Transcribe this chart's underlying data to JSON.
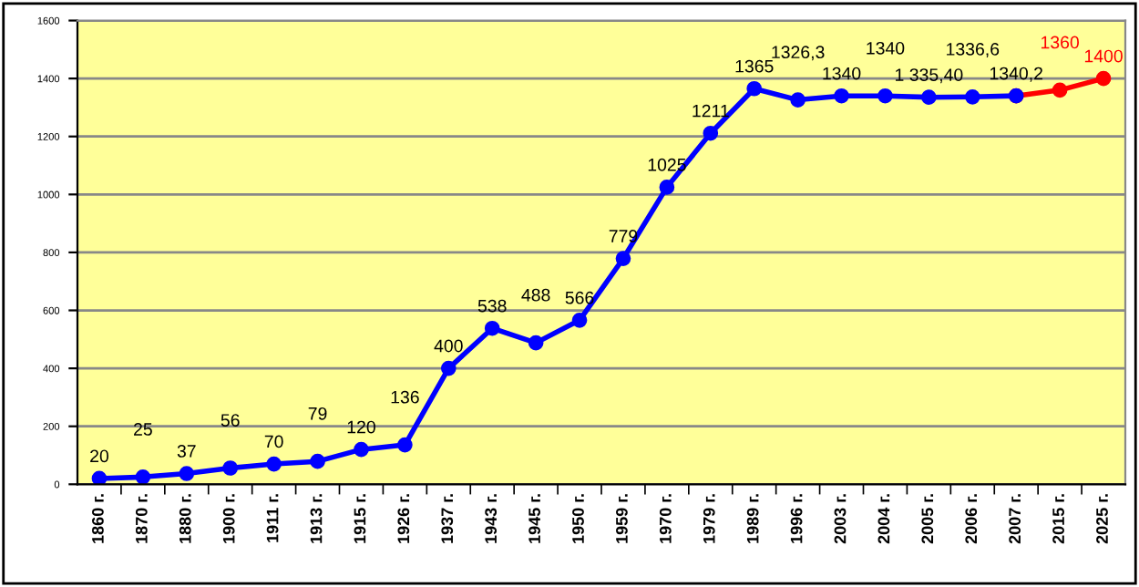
{
  "chart_data": {
    "type": "line",
    "categories": [
      "1860 г.",
      "1870 г.",
      "1880 г.",
      "1900 г.",
      "1911 г.",
      "1913 г.",
      "1915 г.",
      "1926 г.",
      "1937 г.",
      "1943 г.",
      "1945 г.",
      "1950 г.",
      "1959 г.",
      "1970 г.",
      "1979 г.",
      "1989 г.",
      "1996 г.",
      "2003 г.",
      "2004 г.",
      "2005 г.",
      "2006 г.",
      "2007 г.",
      "2015 г.",
      "2025 г."
    ],
    "series": [
      {
        "color": "#ff0000",
        "values": [
          null,
          null,
          null,
          null,
          null,
          null,
          null,
          null,
          null,
          null,
          null,
          null,
          null,
          null,
          null,
          null,
          null,
          null,
          null,
          null,
          null,
          1340.2,
          1360,
          1400
        ],
        "value_labels": [
          null,
          null,
          null,
          null,
          null,
          null,
          null,
          null,
          null,
          null,
          null,
          null,
          null,
          null,
          null,
          null,
          null,
          null,
          null,
          null,
          null,
          null,
          "1360",
          "1400"
        ]
      },
      {
        "color": "#0000ff",
        "values": [
          20,
          25,
          37,
          56,
          70,
          79,
          120,
          136,
          400,
          538,
          488,
          566,
          779,
          1025,
          1211,
          1365,
          1326.3,
          1340,
          1340,
          1335.4,
          1336.6,
          1340.2,
          null,
          null
        ],
        "value_labels": [
          "20",
          "25",
          "37",
          "56",
          "70",
          "79",
          "120",
          "136",
          "400",
          "538",
          "488",
          "566",
          "779",
          "1025",
          "1211",
          "1365",
          "1326,3",
          "1340",
          "1340",
          "1 335,40",
          "1336,6",
          "1340,2",
          null,
          null
        ]
      }
    ],
    "ylim": [
      0,
      1600
    ],
    "yticks": [
      0,
      200,
      400,
      600,
      800,
      1000,
      1200,
      1400,
      1600
    ],
    "grid": "y",
    "marker": "circle",
    "line_style": "solid"
  }
}
